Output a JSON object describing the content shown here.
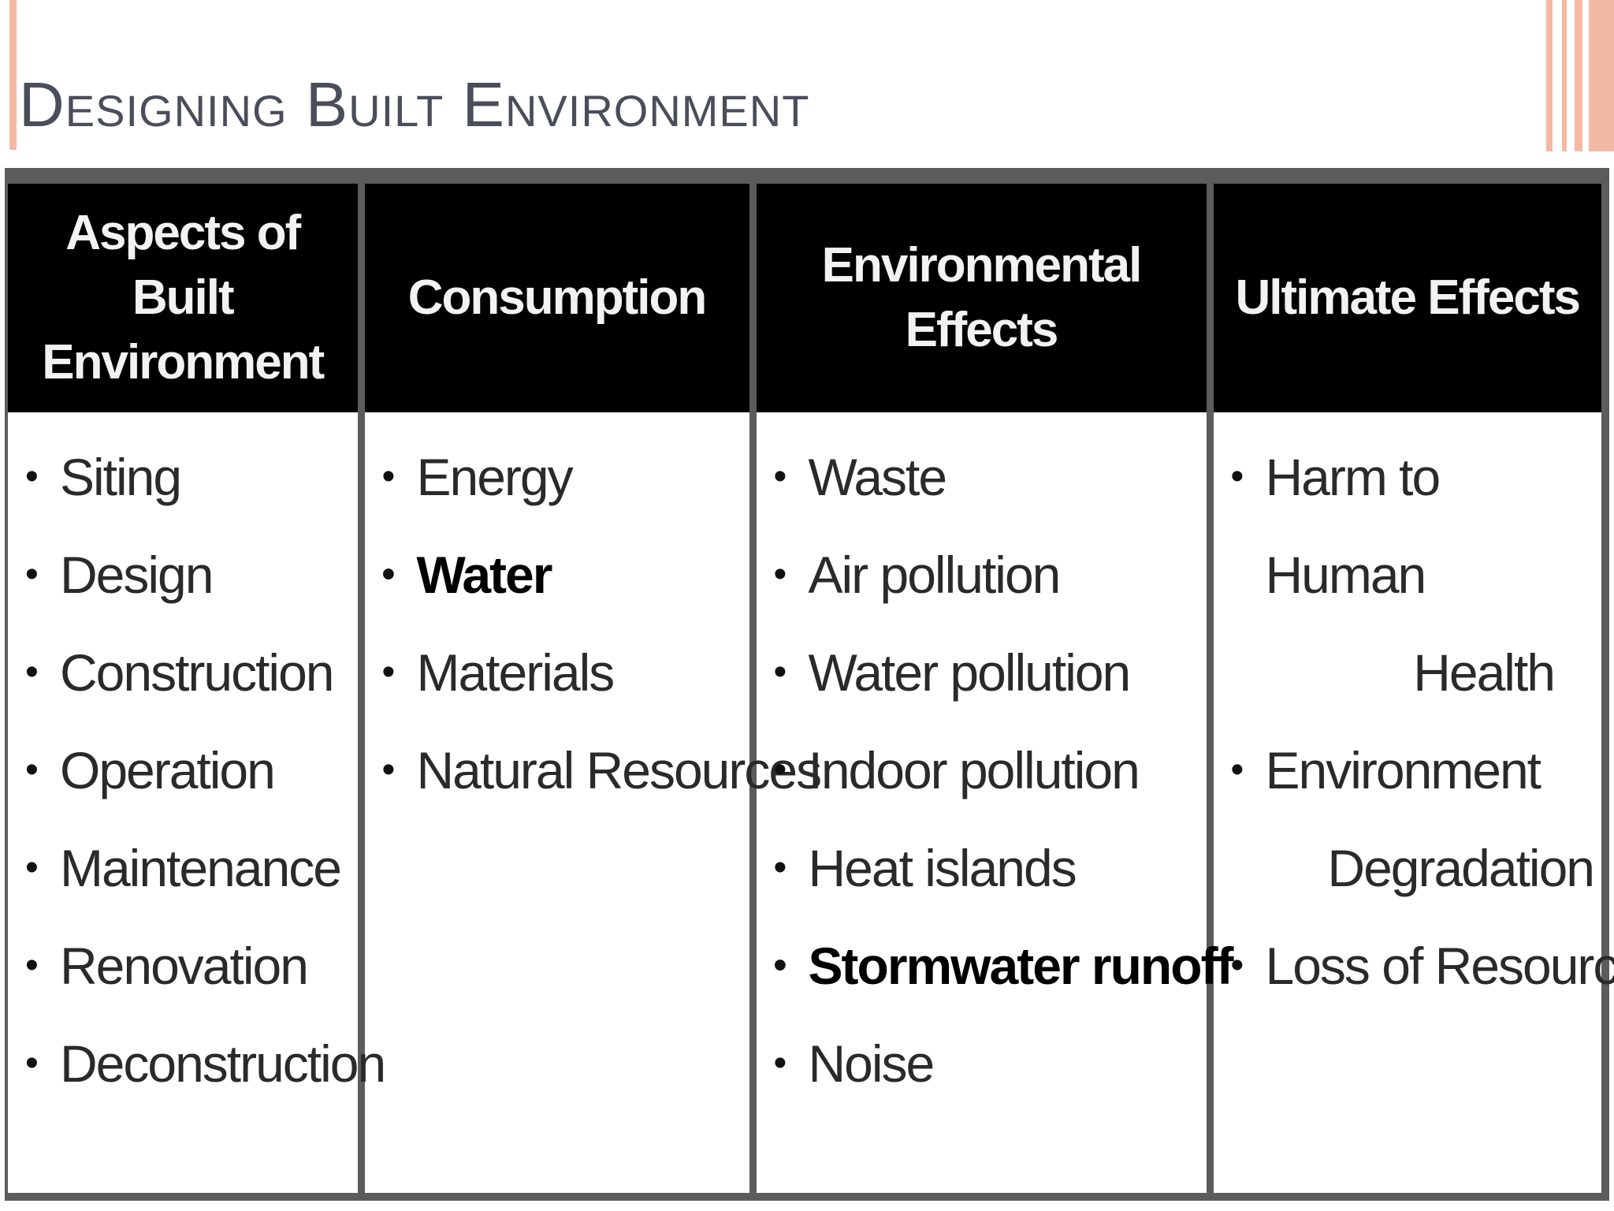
{
  "slide": {
    "title": "Designing Built Environment"
  },
  "table": {
    "headers": [
      "Aspects of Built Environment",
      "Consumption",
      "Environmental Effects",
      "Ultimate Effects"
    ],
    "aspects": [
      "Siting",
      "Design",
      "Construction",
      "Operation",
      "Maintenance",
      "Renovation",
      "Deconstruction"
    ],
    "consumption": [
      "Energy",
      "Water",
      "Materials",
      "Natural Resources"
    ],
    "environmental_effects": [
      "Waste",
      "Air pollution",
      "Water pollution",
      "Indoor pollution",
      "Heat islands",
      "Stormwater runoff",
      "Noise"
    ],
    "ultimate_effects": [
      {
        "line1": "Harm to Human",
        "line2": "Health"
      },
      {
        "line1": "Environment",
        "line2": "Degradation"
      },
      {
        "line1": "Loss of Resources",
        "line2": ""
      }
    ],
    "bullet": "•"
  }
}
